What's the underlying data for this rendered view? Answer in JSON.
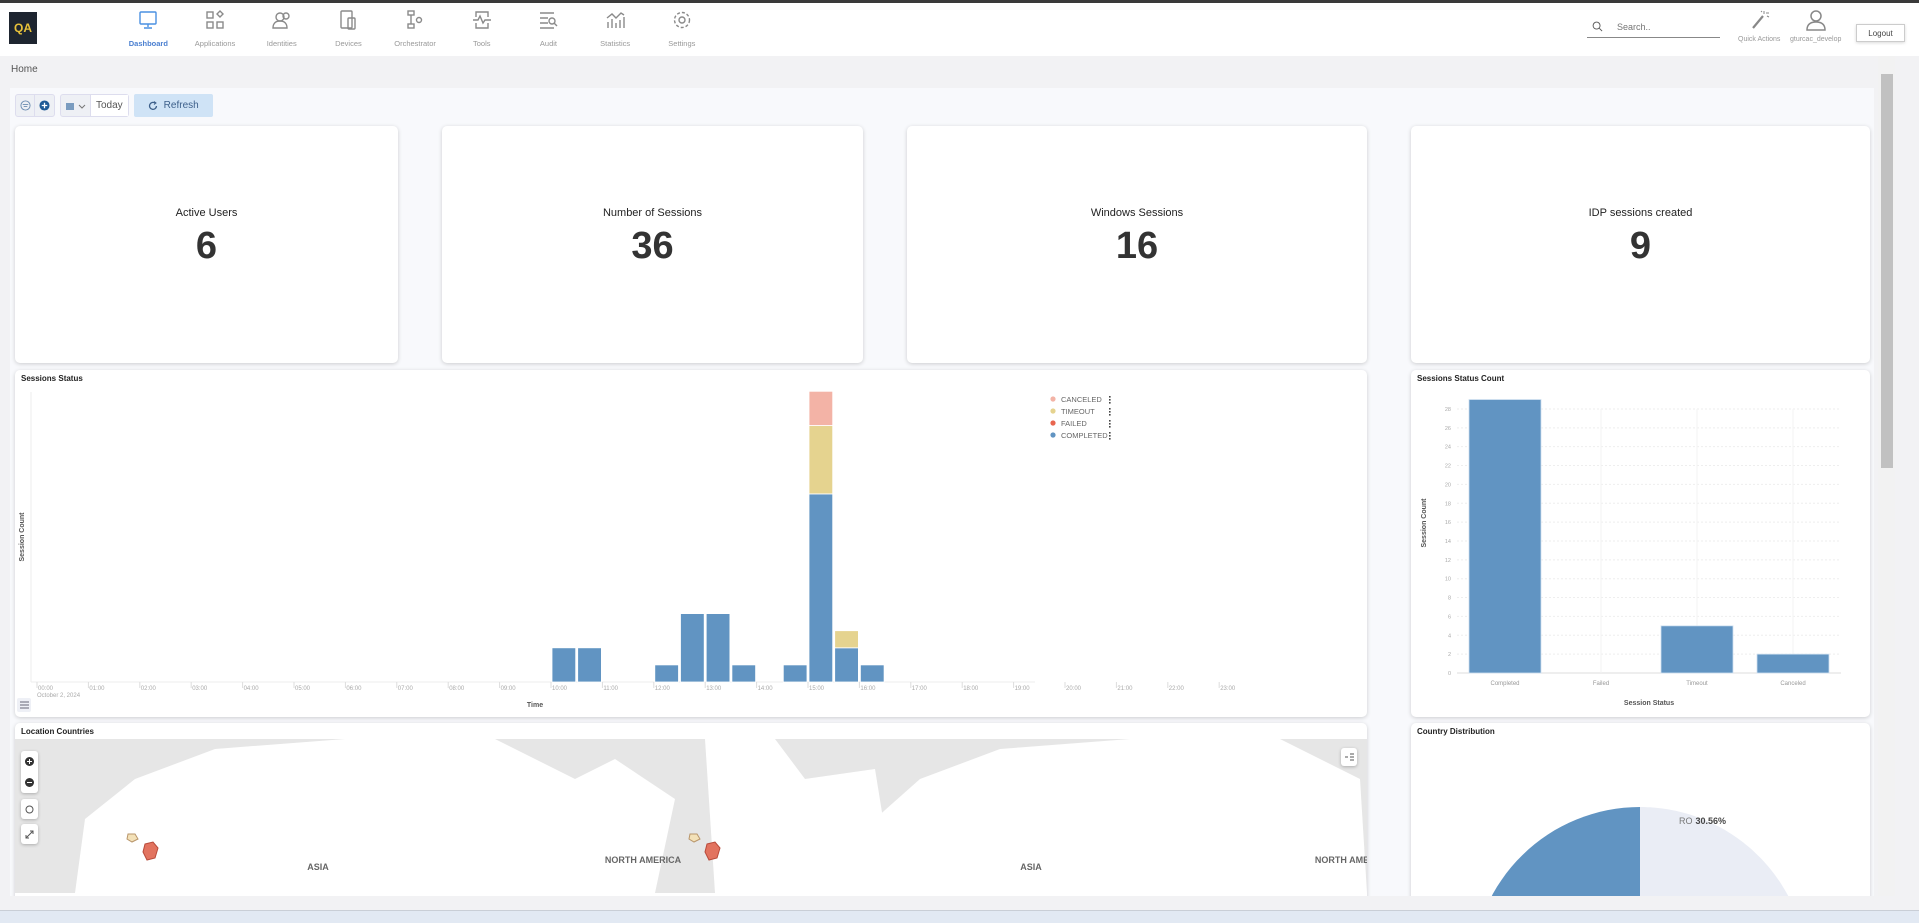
{
  "header": {
    "logo": "QA",
    "nav": [
      {
        "label": "Dashboard",
        "icon": "monitor-icon",
        "active": true
      },
      {
        "label": "Applications",
        "icon": "apps-icon"
      },
      {
        "label": "Identities",
        "icon": "users-icon"
      },
      {
        "label": "Devices",
        "icon": "devices-icon"
      },
      {
        "label": "Orchestrator",
        "icon": "orchestrator-icon"
      },
      {
        "label": "Tools",
        "icon": "tools-icon"
      },
      {
        "label": "Audit",
        "icon": "audit-icon"
      },
      {
        "label": "Statistics",
        "icon": "statistics-icon"
      },
      {
        "label": "Settings",
        "icon": "gear-icon"
      }
    ],
    "search_placeholder": "Search..",
    "quick_actions": "Quick Actions",
    "username": "gturcac_develop",
    "logout": "Logout"
  },
  "breadcrumb": "Home",
  "toolbar": {
    "date_range": "Today",
    "refresh": "Refresh"
  },
  "kpis": [
    {
      "label": "Active Users",
      "value": "6"
    },
    {
      "label": "Number of Sessions",
      "value": "36"
    },
    {
      "label": "Windows Sessions",
      "value": "16"
    },
    {
      "label": "IDP sessions created",
      "value": "9"
    }
  ],
  "colors": {
    "completed": "#6194c2",
    "failed": "#e8654f",
    "timeout": "#e5d38f",
    "canceled": "#f3b3a6",
    "accent": "#4a90e2"
  },
  "chart_data": [
    {
      "type": "bar",
      "stacked": true,
      "title": "Sessions Status",
      "xlabel": "Time",
      "ylabel": "Session Count",
      "date_label": "October 2, 2024",
      "x_ticks": [
        "00:00",
        "01:00",
        "02:00",
        "03:00",
        "04:00",
        "05:00",
        "06:00",
        "07:00",
        "08:00",
        "09:00",
        "10:00",
        "11:00",
        "12:00",
        "13:00",
        "14:00",
        "15:00",
        "16:00",
        "17:00",
        "18:00",
        "19:00",
        "20:00",
        "21:00",
        "22:00",
        "23:00"
      ],
      "x": [
        "10:00",
        "10:30",
        "12:00",
        "12:30",
        "13:00",
        "13:30",
        "14:30",
        "15:00",
        "15:30",
        "16:00"
      ],
      "series": [
        {
          "name": "COMPLETED",
          "values": [
            2,
            2,
            1,
            4,
            4,
            1,
            1,
            11,
            2,
            1
          ]
        },
        {
          "name": "FAILED",
          "values": [
            0,
            0,
            0,
            0,
            0,
            0,
            0,
            0,
            0,
            0
          ]
        },
        {
          "name": "TIMEOUT",
          "values": [
            0,
            0,
            0,
            0,
            0,
            0,
            0,
            4,
            1,
            0
          ]
        },
        {
          "name": "CANCELED",
          "values": [
            0,
            0,
            0,
            0,
            0,
            0,
            0,
            2,
            0,
            0
          ]
        }
      ],
      "legend_order": [
        "CANCELED",
        "TIMEOUT",
        "FAILED",
        "COMPLETED"
      ],
      "legend": "top-right"
    },
    {
      "type": "bar",
      "title": "Sessions Status Count",
      "xlabel": "Session Status",
      "ylabel": "Session Count",
      "categories": [
        "Completed",
        "Failed",
        "Timeout",
        "Canceled"
      ],
      "values": [
        29,
        0,
        5,
        2
      ],
      "ylim": [
        0,
        28
      ],
      "y_ticks": [
        0,
        2,
        4,
        6,
        8,
        10,
        12,
        14,
        16,
        18,
        20,
        22,
        24,
        26,
        28
      ],
      "grid": true
    },
    {
      "type": "pie",
      "title": "Country Distribution",
      "slices": [
        {
          "label": "RO",
          "value": 30.56,
          "text": "30.56%"
        },
        {
          "value": 69.44
        }
      ]
    }
  ],
  "map": {
    "title": "Location Countries",
    "labels": [
      "ASIA",
      "NORTH AMERICA",
      "ASIA",
      "NORTH AMERICA"
    ]
  }
}
